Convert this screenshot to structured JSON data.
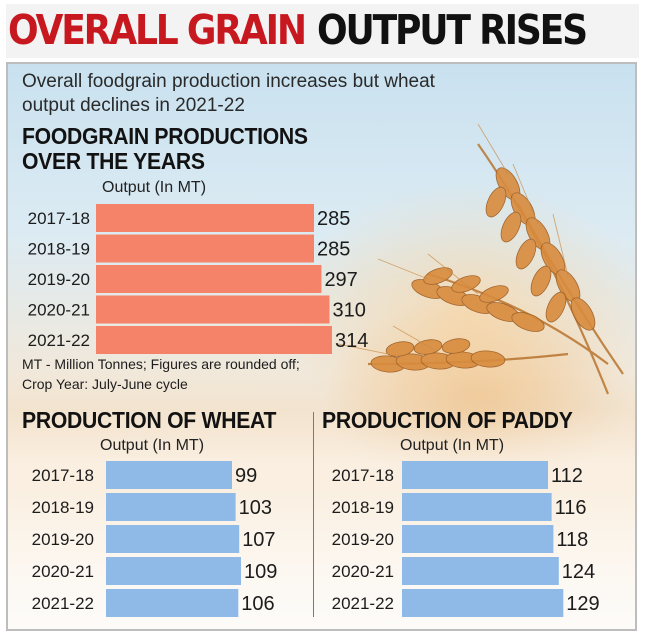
{
  "header": {
    "title_part1": "OVERALL GRAIN",
    "title_part2": "OUTPUT RISES"
  },
  "subtitle": "Overall foodgrain production increases but wheat output declines in 2021-22",
  "notes": {
    "line1": "MT - Million Tonnes; Figures are rounded off;",
    "line2": "Crop Year: July-June cycle"
  },
  "colors": {
    "headline_red": "#c8181f",
    "foodgrain_bar": "#f4836a",
    "wheat_bar": "#8fb9e6",
    "paddy_bar": "#8fb9e6"
  },
  "chart_data": [
    {
      "type": "bar",
      "orientation": "horizontal",
      "title": "FOODGRAIN PRODUCTIONS OVER THE YEARS",
      "title_line1": "FOODGRAIN PRODUCTIONS",
      "title_line2": "OVER THE YEARS",
      "xlabel": "Output (In MT)",
      "categories": [
        "2017-18",
        "2018-19",
        "2019-20",
        "2020-21",
        "2021-22"
      ],
      "values": [
        285,
        285,
        297,
        310,
        314
      ],
      "xlim": [
        0,
        314
      ],
      "grid": false
    },
    {
      "type": "bar",
      "orientation": "horizontal",
      "title": "PRODUCTION OF WHEAT",
      "xlabel": "Output (In MT)",
      "categories": [
        "2017-18",
        "2018-19",
        "2019-20",
        "2020-21",
        "2021-22"
      ],
      "values": [
        99,
        103,
        107,
        109,
        106
      ],
      "xlim": [
        0,
        129
      ],
      "grid": false
    },
    {
      "type": "bar",
      "orientation": "horizontal",
      "title": "PRODUCTION OF PADDY",
      "xlabel": "Output (In MT)",
      "categories": [
        "2017-18",
        "2018-19",
        "2019-20",
        "2020-21",
        "2021-22"
      ],
      "values": [
        112,
        116,
        118,
        124,
        129
      ],
      "xlim": [
        0,
        129
      ],
      "grid": false
    }
  ]
}
